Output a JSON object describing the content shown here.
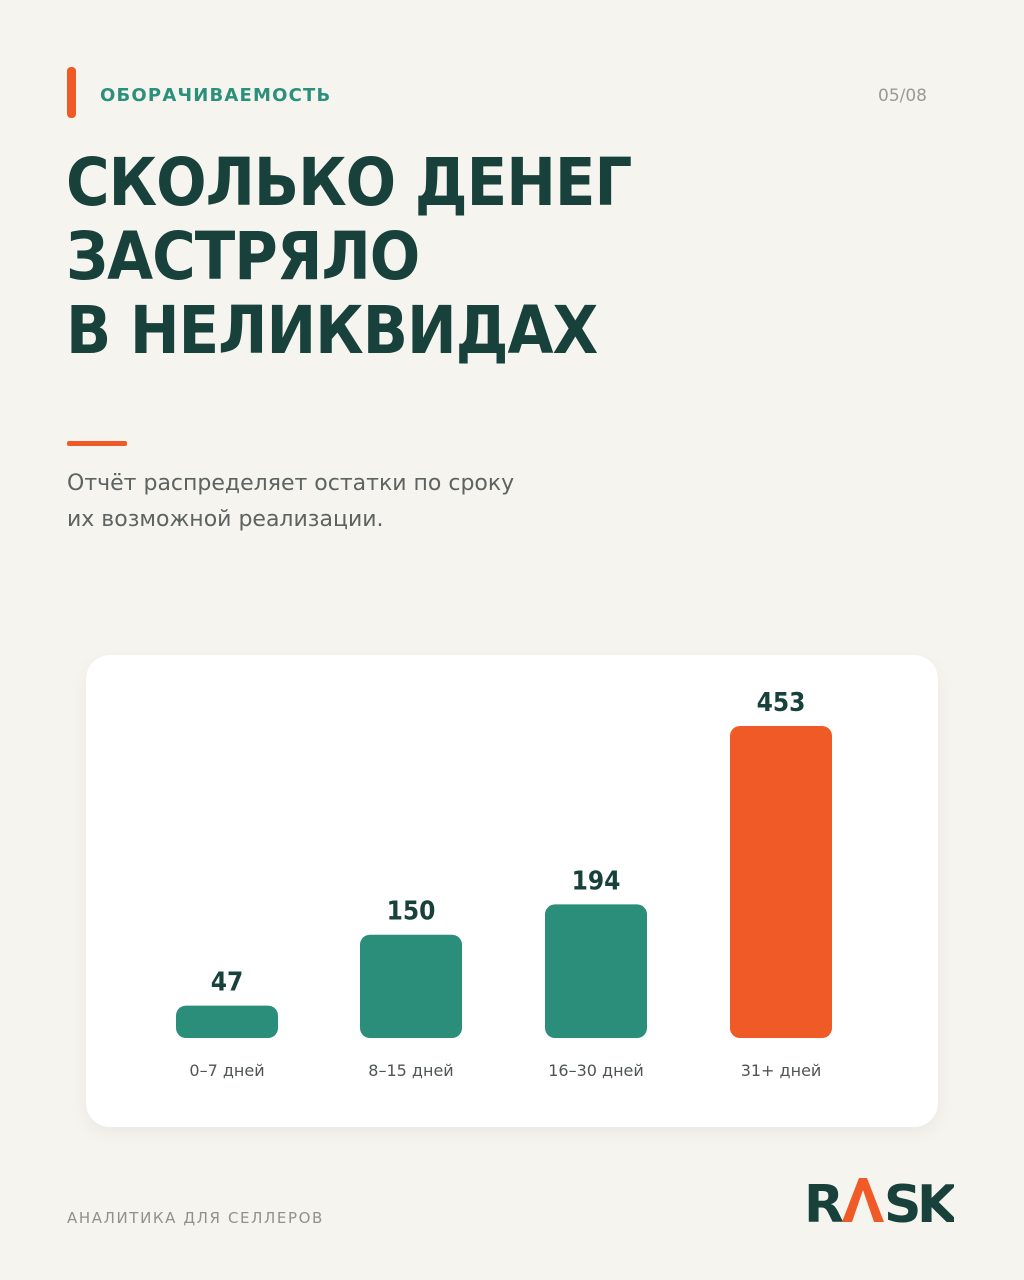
{
  "header": {
    "section_label": "ОБОРАЧИВАЕМОСТЬ",
    "page_number": "05/08"
  },
  "headline": {
    "lines": [
      "СКОЛЬКО ДЕНЕГ",
      "ЗАСТРЯЛО",
      "В НЕЛИКВИДАХ"
    ]
  },
  "subtitle": {
    "lines": [
      "Отчёт распределяет остатки по сроку",
      "их возможной реализации."
    ]
  },
  "chart_data": {
    "type": "bar",
    "categories": [
      "0–7 дней",
      "8–15 дней",
      "16–30 дней",
      "31+ дней"
    ],
    "values": [
      47,
      150,
      194,
      453
    ],
    "title": "",
    "xlabel": "",
    "ylabel": "",
    "ylim": [
      0,
      453
    ],
    "grid": false,
    "data_labels": true,
    "colors": [
      "#2a8e7b",
      "#2a8e7b",
      "#2a8e7b",
      "#ef5a26"
    ]
  },
  "footer": {
    "tagline": "АНАЛИТИКА ДЛЯ СЕЛЛЕРОВ",
    "logo_text": "RASK"
  },
  "colors": {
    "background": "#f6f4ef",
    "accent": "#ef5a26",
    "primary_green": "#2a8e7b",
    "headline": "#17413a"
  }
}
